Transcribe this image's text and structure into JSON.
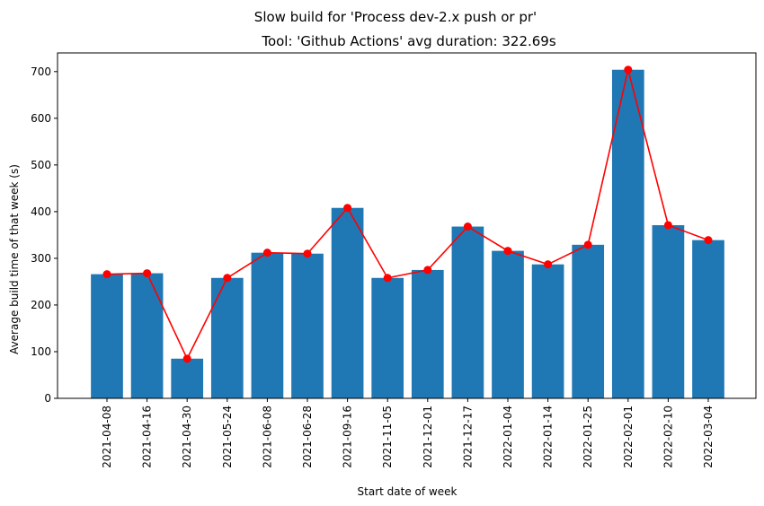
{
  "chart_data": {
    "type": "bar",
    "suptitle": "Slow build for 'Process dev-2.x push or pr'",
    "title": "Tool: 'Github Actions' avg duration: 322.69s",
    "xlabel": "Start date of week",
    "ylabel": "Average build time of that week (s)",
    "categories": [
      "2021-04-08",
      "2021-04-16",
      "2021-04-30",
      "2021-05-24",
      "2021-06-08",
      "2021-06-28",
      "2021-09-16",
      "2021-11-05",
      "2021-12-01",
      "2021-12-17",
      "2022-01-04",
      "2022-01-14",
      "2022-01-25",
      "2022-02-01",
      "2022-02-10",
      "2022-03-04"
    ],
    "values": [
      266,
      268,
      85,
      258,
      312,
      310,
      408,
      258,
      275,
      368,
      316,
      287,
      329,
      704,
      371,
      339
    ],
    "overlay_line": {
      "values": [
        266,
        268,
        85,
        258,
        312,
        310,
        408,
        258,
        275,
        368,
        316,
        287,
        329,
        704,
        371,
        339
      ],
      "color": "#ff0000"
    },
    "ylim": [
      0,
      740
    ],
    "yticks": [
      0,
      100,
      200,
      300,
      400,
      500,
      600,
      700
    ],
    "bar_color": "#1f77b4",
    "grid": false,
    "legend": "none"
  }
}
